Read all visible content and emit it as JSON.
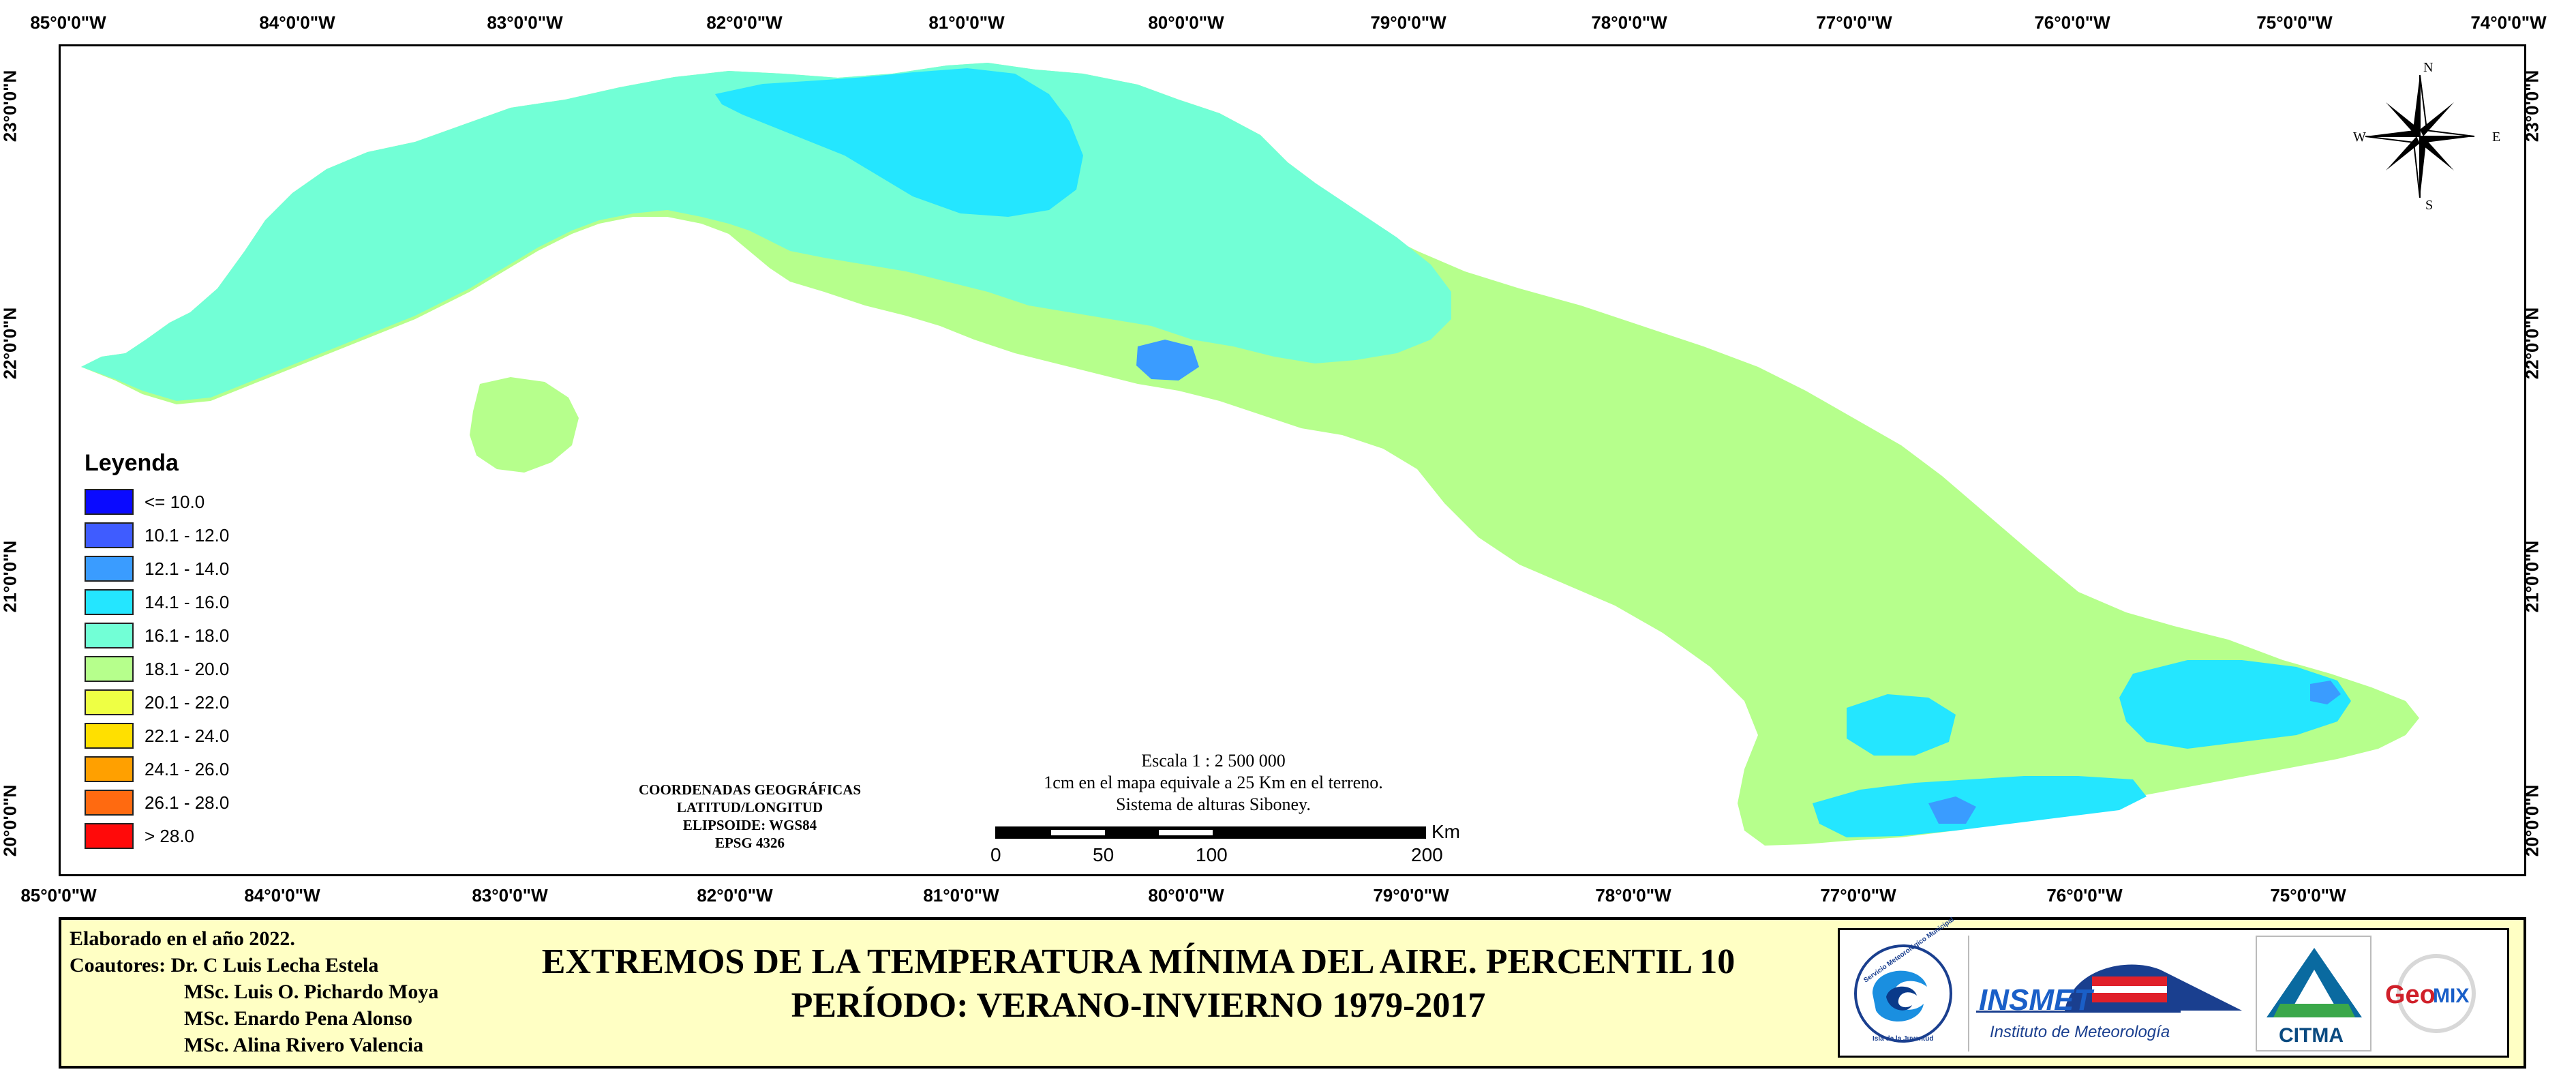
{
  "map": {
    "longitude_ticks": [
      "85°0'0\"W",
      "84°0'0\"W",
      "83°0'0\"W",
      "82°0'0\"W",
      "81°0'0\"W",
      "80°0'0\"W",
      "79°0'0\"W",
      "78°0'0\"W",
      "77°0'0\"W",
      "76°0'0\"W",
      "75°0'0\"W",
      "74°0'0\"W"
    ],
    "latitude_ticks": [
      "23°0'0\"N",
      "22°0'0\"N",
      "21°0'0\"N",
      "20°0'0\"N"
    ],
    "land_colors": {
      "class_14_16": "#24e6ff",
      "class_16_18": "#72ffd6",
      "class_18_20": "#b6ff8c",
      "class_12_14": "#3a9cff"
    }
  },
  "legend": {
    "title": "Leyenda",
    "items": [
      {
        "label": "<= 10.0",
        "color": "#0a0aff"
      },
      {
        "label": "10.1 - 12.0",
        "color": "#3f5cff"
      },
      {
        "label": "12.1 - 14.0",
        "color": "#3a9cff"
      },
      {
        "label": "14.1 - 16.0",
        "color": "#24e6ff"
      },
      {
        "label": "16.1 - 18.0",
        "color": "#72ffd6"
      },
      {
        "label": "18.1 - 20.0",
        "color": "#b6ff8c"
      },
      {
        "label": "20.1 - 22.0",
        "color": "#eeff44"
      },
      {
        "label": "22.1 - 24.0",
        "color": "#ffe000"
      },
      {
        "label": "24.1 - 26.0",
        "color": "#ffa000"
      },
      {
        "label": "26.1 - 28.0",
        "color": "#ff6a10"
      },
      {
        "label": "> 28.0",
        "color": "#ff0a0a"
      }
    ]
  },
  "compass": {
    "north": "N",
    "south": "S",
    "east": "E",
    "west": "W"
  },
  "coordinates_note": [
    "COORDENADAS GEOGRÁFICAS",
    "LATITUD/LONGITUD",
    "ELIPSOIDE: WGS84",
    "EPSG 4326"
  ],
  "scale": {
    "lines": [
      "Escala 1 : 2 500 000",
      "1cm en el mapa equivale a 25 Km en el terreno.",
      "Sistema de alturas Siboney."
    ],
    "unit": "Km",
    "ticks": [
      "0",
      "50",
      "100",
      "200"
    ]
  },
  "footer": {
    "elaborated": "Elaborado en el año 2022.",
    "coauthors_label": "Coautores: Dr. C Luis Lecha Estela",
    "coauthors": [
      "MSc. Luis O. Pichardo Moya",
      "MSc. Enardo Pena Alonso",
      "MSc. Alina Rivero Valencia"
    ],
    "title_line1": "EXTREMOS DE LA TEMPERATURA MÍNIMA DEL AIRE. PERCENTIL 10",
    "title_line2": "PERÍODO: VERANO-INVIERNO 1979-2017"
  },
  "logos": {
    "smm_arc": "Servicio Meteorológico Municipal",
    "smm_sub": "Isla de la Juventud",
    "insmet": "INSMET",
    "insmet_sub": "Instituto de Meteorología",
    "citma": "CITMA",
    "geomix_a": "Geo",
    "geomix_b": "MIX"
  }
}
